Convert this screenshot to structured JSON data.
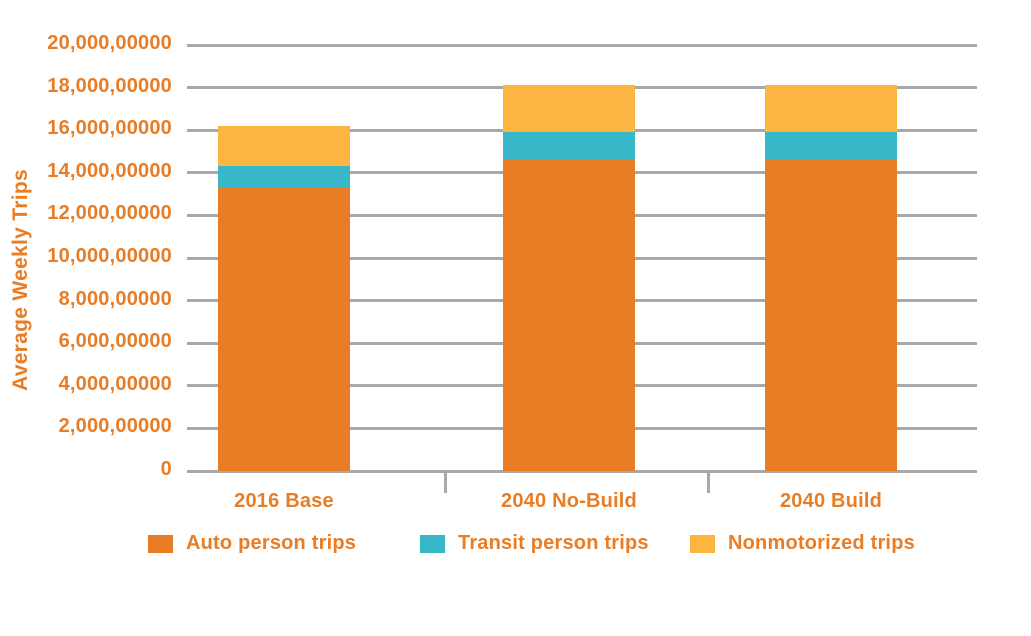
{
  "chart_data": {
    "type": "bar",
    "stacked": true,
    "title": "",
    "xlabel": "",
    "ylabel": "Average Weekly Trips",
    "categories": [
      "2016 Base",
      "2040 No-Build",
      "2040 Build"
    ],
    "series": [
      {
        "name": "Auto person trips",
        "color": "#e87d26",
        "values": [
          13300000,
          14600000,
          14600000
        ]
      },
      {
        "name": "Transit person trips",
        "color": "#37b7c7",
        "values": [
          1000000,
          1300000,
          1300000
        ]
      },
      {
        "name": "Nonmotorized trips",
        "color": "#fbb540",
        "values": [
          1900000,
          2200000,
          2200000
        ]
      }
    ],
    "stack_totals": [
      16200000,
      18100000,
      18100000
    ],
    "ylim": [
      0,
      20000000
    ],
    "ytick_interval": 2000000,
    "ytick_labels": [
      "0",
      "2,000,00000",
      "4,000,00000",
      "6,000,00000",
      "8,000,00000",
      "10,000,00000",
      "12,000,00000",
      "14,000,00000",
      "16,000,00000",
      "18,000,00000",
      "20,000,00000"
    ],
    "grid": "horizontal",
    "legend_position": "bottom"
  },
  "colors": {
    "accent_orange": "#e87d26",
    "series_teal": "#37b7c7",
    "series_yellow": "#fbb540",
    "gridline_gray": "#a7a9ac",
    "background": "#ffffff"
  }
}
